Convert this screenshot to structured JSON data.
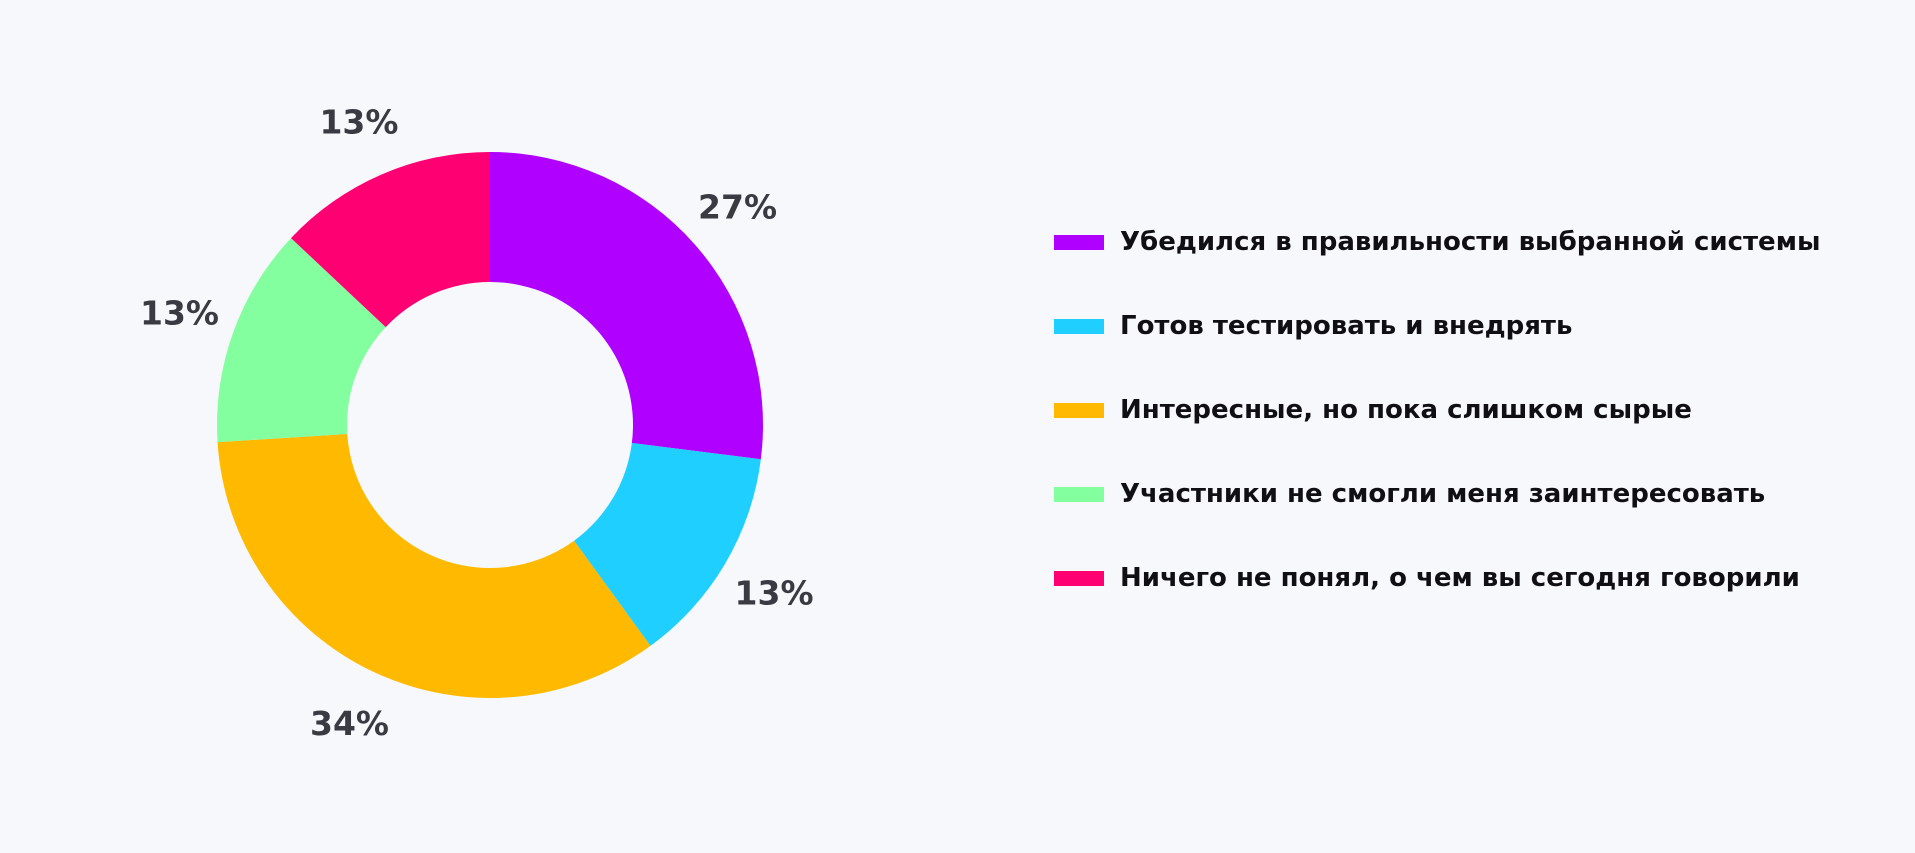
{
  "chart_data": {
    "type": "pie",
    "donut": true,
    "title": "",
    "categories": [
      "Убедился в правильности выбранной системы",
      "Готов тестировать и внедрять",
      "Интересные, но пока слишком сырые",
      "Участники не смогли меня заинтересовать",
      "Ничего не понял, о чем вы сегодня говорили"
    ],
    "values": [
      27,
      13,
      34,
      13,
      13
    ],
    "labels": [
      "27%",
      "13%",
      "34%",
      "13%",
      "13%"
    ],
    "colors": [
      "#b000ff",
      "#1fcfff",
      "#ffba00",
      "#83ff9f",
      "#ff0073"
    ],
    "legend_position": "right"
  }
}
